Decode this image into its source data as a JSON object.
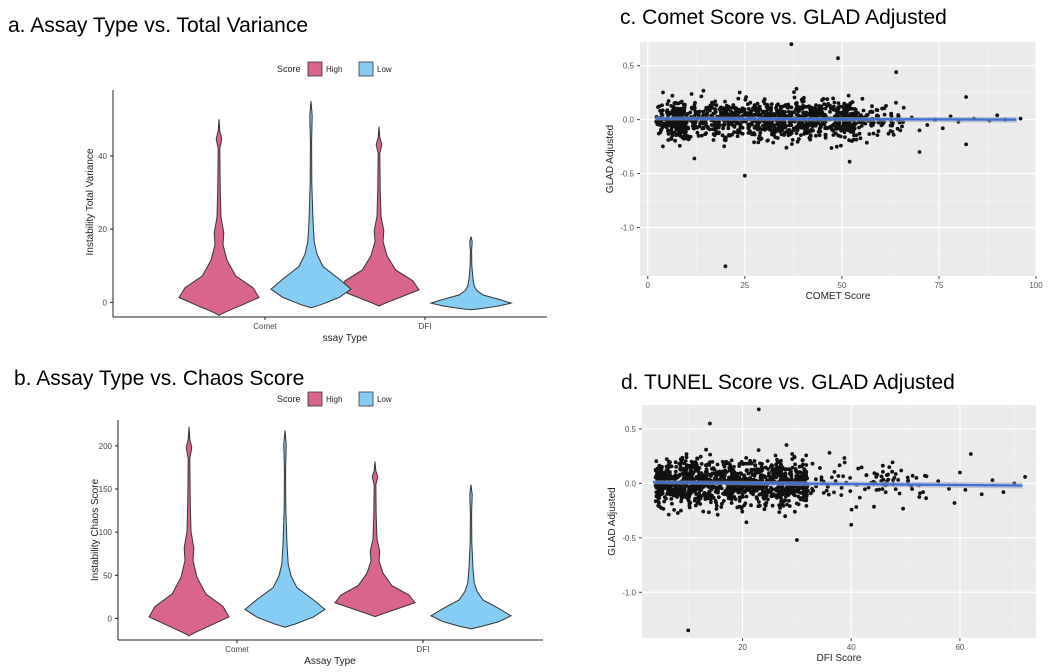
{
  "panels": {
    "a": {
      "title": "a. Assay Type vs. Total Variance"
    },
    "b": {
      "title": "b. Assay Type vs. Chaos Score"
    },
    "c": {
      "title": "c. Comet Score vs. GLAD Adjusted"
    },
    "d": {
      "title": "d. TUNEL Score vs. GLAD Adjusted"
    }
  },
  "colors": {
    "high": "#d9668a",
    "low": "#85cdf5",
    "point": "#111111",
    "fit": "#3d6fd9",
    "panel_bg": "#ebebeb"
  },
  "chart_data": [
    {
      "id": "a",
      "type": "violin",
      "legend": {
        "title": "Score",
        "entries": [
          "High",
          "Low"
        ],
        "position": "top"
      },
      "xlabel": "ssay Type",
      "ylabel": "Instability Total Variance",
      "categories": [
        "Comet",
        "DFI"
      ],
      "yticks": [
        "0",
        "20",
        "40"
      ],
      "ylim": [
        -4,
        58
      ],
      "series": [
        {
          "name": "High",
          "medians": [
            4.5,
            4.5
          ],
          "max": [
            50,
            48
          ],
          "min": [
            -3.5,
            -1
          ]
        },
        {
          "name": "Low",
          "medians": [
            4,
            3.5
          ],
          "max": [
            55,
            18
          ],
          "min": [
            -1.5,
            -2
          ]
        }
      ]
    },
    {
      "id": "b",
      "type": "violin",
      "legend": {
        "title": "Score",
        "entries": [
          "High",
          "Low"
        ],
        "position": "top"
      },
      "xlabel": "Assay Type",
      "ylabel": "Instability Chaos Score",
      "categories": [
        "Comet",
        "DFI"
      ],
      "yticks": [
        "0",
        "50",
        "100",
        "150",
        "200"
      ],
      "ylim": [
        -25,
        230
      ],
      "series": [
        {
          "name": "High",
          "medians": [
            25,
            20
          ],
          "max": [
            222,
            182
          ],
          "min": [
            -20,
            2
          ]
        },
        {
          "name": "Low",
          "medians": [
            15,
            15
          ],
          "max": [
            218,
            155
          ],
          "min": [
            -10,
            -12
          ]
        }
      ]
    },
    {
      "id": "c",
      "type": "scatter",
      "xlabel": "COMET Score",
      "ylabel": "GLAD Adjusted",
      "xticks": [
        "0",
        "25",
        "50",
        "75",
        "100"
      ],
      "yticks": [
        "0.5",
        "0.0",
        "-0.5",
        "-1.0"
      ],
      "xlim": [
        -2,
        100
      ],
      "ylim": [
        -1.45,
        0.72
      ],
      "fit": {
        "x": [
          2,
          95
        ],
        "y": [
          0.01,
          0.0
        ]
      }
    },
    {
      "id": "d",
      "type": "scatter",
      "xlabel": "DFI Score",
      "ylabel": "GLAD Adjusted",
      "xticks": [
        "20",
        "40",
        "60"
      ],
      "yticks": [
        "0.5",
        "0.0",
        "-0.5",
        "-1.0"
      ],
      "xlim": [
        1.5,
        74
      ],
      "ylim": [
        -1.42,
        0.72
      ],
      "fit": {
        "x": [
          3.5,
          71.5
        ],
        "y": [
          0.01,
          -0.02
        ]
      }
    }
  ]
}
